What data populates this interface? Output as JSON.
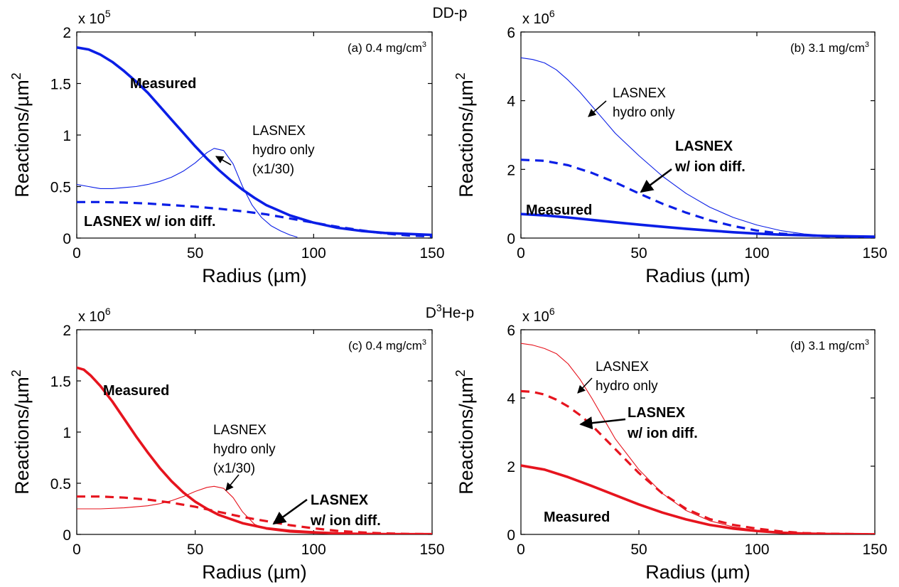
{
  "figure": {
    "row_titles": [
      {
        "id": "top",
        "text": "DD-p"
      },
      {
        "id": "bottom",
        "prefix": "D",
        "sup": "3",
        "suffix": "He-p"
      }
    ]
  },
  "colors": {
    "blue": "#0a1ee6",
    "red": "#e6141e"
  },
  "chart_data": [
    {
      "id": "a",
      "type": "line",
      "panel_label": "(a) 0.4 mg/cm",
      "panel_label_sup": "3",
      "xlabel": "Radius (µm)",
      "ylabel": "Reactions/µm",
      "ylabel_sup": "2",
      "y_multiplier": "x 10",
      "y_multiplier_exp": "5",
      "xlim": [
        0,
        150
      ],
      "ylim": [
        0,
        2
      ],
      "xticks": [
        0,
        50,
        100,
        150
      ],
      "yticks": [
        0,
        0.5,
        1,
        1.5,
        2
      ],
      "ytick_labels": [
        "0",
        "0.5",
        "1",
        "1.5",
        "2"
      ],
      "color": "blue",
      "series": [
        {
          "style": "thick-solid",
          "x": [
            0,
            5,
            10,
            15,
            20,
            25,
            30,
            35,
            40,
            45,
            50,
            55,
            60,
            65,
            70,
            75,
            80,
            90,
            100,
            110,
            120,
            130,
            140,
            150
          ],
          "y": [
            1.85,
            1.83,
            1.78,
            1.71,
            1.62,
            1.52,
            1.41,
            1.28,
            1.15,
            1.02,
            0.89,
            0.77,
            0.66,
            0.56,
            0.47,
            0.39,
            0.32,
            0.22,
            0.15,
            0.1,
            0.07,
            0.05,
            0.04,
            0.03
          ]
        },
        {
          "style": "dashed",
          "x": [
            0,
            10,
            20,
            30,
            40,
            50,
            60,
            70,
            80,
            90,
            100,
            110,
            120,
            130,
            140,
            150
          ],
          "y": [
            0.35,
            0.35,
            0.345,
            0.335,
            0.32,
            0.305,
            0.285,
            0.26,
            0.23,
            0.19,
            0.15,
            0.11,
            0.075,
            0.045,
            0.025,
            0.015
          ]
        },
        {
          "style": "thin-solid",
          "x": [
            0,
            5,
            10,
            15,
            20,
            25,
            30,
            35,
            40,
            45,
            50,
            55,
            58,
            62,
            66,
            70,
            74,
            78,
            82,
            86,
            90,
            93
          ],
          "y": [
            0.52,
            0.5,
            0.48,
            0.48,
            0.49,
            0.5,
            0.52,
            0.55,
            0.59,
            0.65,
            0.73,
            0.83,
            0.87,
            0.85,
            0.72,
            0.5,
            0.32,
            0.2,
            0.12,
            0.07,
            0.03,
            0.01
          ]
        }
      ],
      "annotations": [
        {
          "id": "measured",
          "lines": [
            "Measured"
          ],
          "bold": true
        },
        {
          "id": "hydro",
          "lines": [
            "LASNEX",
            "hydro only",
            "(x1/30)"
          ],
          "bold": false
        },
        {
          "id": "iondiff",
          "lines": [
            "LASNEX w/ ion diff."
          ],
          "bold": true
        }
      ]
    },
    {
      "id": "b",
      "type": "line",
      "panel_label": "(b) 3.1 mg/cm",
      "panel_label_sup": "3",
      "xlabel": "Radius (µm)",
      "ylabel": "Reactions/µm",
      "ylabel_sup": "2",
      "y_multiplier": "x 10",
      "y_multiplier_exp": "6",
      "xlim": [
        0,
        150
      ],
      "ylim": [
        0,
        6
      ],
      "xticks": [
        0,
        50,
        100,
        150
      ],
      "yticks": [
        0,
        2,
        4,
        6
      ],
      "ytick_labels": [
        "0",
        "2",
        "4",
        "6"
      ],
      "color": "blue",
      "series": [
        {
          "style": "thick-solid",
          "x": [
            0,
            10,
            20,
            30,
            40,
            50,
            60,
            70,
            80,
            90,
            100,
            110,
            120,
            130,
            140,
            150
          ],
          "y": [
            0.7,
            0.66,
            0.6,
            0.53,
            0.46,
            0.39,
            0.33,
            0.27,
            0.22,
            0.17,
            0.13,
            0.1,
            0.08,
            0.06,
            0.05,
            0.04
          ]
        },
        {
          "style": "dashed",
          "x": [
            0,
            10,
            20,
            30,
            40,
            50,
            60,
            70,
            80,
            90,
            100,
            110,
            120,
            130,
            140,
            150
          ],
          "y": [
            2.28,
            2.25,
            2.12,
            1.9,
            1.62,
            1.3,
            1.0,
            0.74,
            0.52,
            0.35,
            0.22,
            0.13,
            0.08,
            0.05,
            0.04,
            0.03
          ]
        },
        {
          "style": "thin-solid",
          "x": [
            0,
            5,
            10,
            15,
            20,
            25,
            30,
            35,
            40,
            50,
            60,
            70,
            80,
            90,
            100,
            110,
            120,
            130,
            140,
            150
          ],
          "y": [
            5.25,
            5.2,
            5.1,
            4.9,
            4.6,
            4.25,
            3.85,
            3.45,
            3.05,
            2.4,
            1.8,
            1.3,
            0.9,
            0.6,
            0.38,
            0.22,
            0.12,
            0.07,
            0.05,
            0.04
          ]
        }
      ],
      "annotations": [
        {
          "id": "measured",
          "lines": [
            "Measured"
          ],
          "bold": true
        },
        {
          "id": "hydro",
          "lines": [
            "LASNEX",
            "hydro only"
          ],
          "bold": false
        },
        {
          "id": "iondiff",
          "lines": [
            "LASNEX",
            "w/ ion diff."
          ],
          "bold": true
        }
      ]
    },
    {
      "id": "c",
      "type": "line",
      "panel_label": "(c) 0.4 mg/cm",
      "panel_label_sup": "3",
      "xlabel": "Radius (µm)",
      "ylabel": "Reactions/µm",
      "ylabel_sup": "2",
      "y_multiplier": "x 10",
      "y_multiplier_exp": "6",
      "xlim": [
        0,
        150
      ],
      "ylim": [
        0,
        2
      ],
      "xticks": [
        0,
        50,
        100,
        150
      ],
      "yticks": [
        0,
        0.5,
        1,
        1.5,
        2
      ],
      "ytick_labels": [
        "0",
        "0.5",
        "1",
        "1.5",
        "2"
      ],
      "color": "red",
      "series": [
        {
          "style": "thick-solid",
          "x": [
            0,
            3,
            6,
            10,
            15,
            20,
            25,
            30,
            35,
            40,
            45,
            50,
            55,
            60,
            65,
            70,
            80,
            90,
            100,
            110,
            120,
            130,
            140,
            150
          ],
          "y": [
            1.63,
            1.61,
            1.55,
            1.45,
            1.3,
            1.13,
            0.96,
            0.8,
            0.65,
            0.52,
            0.41,
            0.32,
            0.25,
            0.19,
            0.15,
            0.11,
            0.06,
            0.035,
            0.02,
            0.01,
            0.005,
            0.003,
            0.002,
            0.002
          ]
        },
        {
          "style": "dashed",
          "x": [
            0,
            10,
            20,
            30,
            40,
            50,
            60,
            70,
            80,
            90,
            100,
            110,
            120,
            130,
            140,
            150
          ],
          "y": [
            0.37,
            0.37,
            0.36,
            0.34,
            0.31,
            0.27,
            0.22,
            0.17,
            0.13,
            0.09,
            0.06,
            0.035,
            0.02,
            0.01,
            0.005,
            0.003
          ]
        },
        {
          "style": "thin-solid",
          "x": [
            0,
            10,
            20,
            30,
            35,
            40,
            45,
            50,
            55,
            58,
            62,
            66,
            70,
            75,
            80,
            90,
            100,
            110,
            120,
            130,
            140,
            150
          ],
          "y": [
            0.25,
            0.25,
            0.26,
            0.28,
            0.3,
            0.33,
            0.37,
            0.42,
            0.46,
            0.47,
            0.45,
            0.36,
            0.22,
            0.1,
            0.05,
            0.02,
            0.01,
            0.005,
            0.003,
            0.002,
            0.001,
            0.001
          ]
        }
      ],
      "annotations": [
        {
          "id": "measured",
          "lines": [
            "Measured"
          ],
          "bold": true
        },
        {
          "id": "hydro",
          "lines": [
            "LASNEX",
            "hydro only",
            "(x1/30)"
          ],
          "bold": false
        },
        {
          "id": "iondiff",
          "lines": [
            "LASNEX",
            "w/ ion diff."
          ],
          "bold": true
        }
      ]
    },
    {
      "id": "d",
      "type": "line",
      "panel_label": "(d) 3.1 mg/cm",
      "panel_label_sup": "3",
      "xlabel": "Radius (µm)",
      "ylabel": "Reactions/µm",
      "ylabel_sup": "2",
      "y_multiplier": "x 10",
      "y_multiplier_exp": "6",
      "xlim": [
        0,
        150
      ],
      "ylim": [
        0,
        6
      ],
      "xticks": [
        0,
        50,
        100,
        150
      ],
      "yticks": [
        0,
        2,
        4,
        6
      ],
      "ytick_labels": [
        "0",
        "2",
        "4",
        "6"
      ],
      "color": "red",
      "series": [
        {
          "style": "thick-solid",
          "x": [
            0,
            10,
            20,
            30,
            40,
            50,
            60,
            70,
            80,
            90,
            100,
            110,
            120,
            130,
            140,
            150
          ],
          "y": [
            2.02,
            1.9,
            1.68,
            1.42,
            1.15,
            0.88,
            0.64,
            0.44,
            0.28,
            0.17,
            0.1,
            0.05,
            0.025,
            0.012,
            0.006,
            0.003
          ]
        },
        {
          "style": "dashed",
          "x": [
            0,
            5,
            10,
            15,
            20,
            25,
            30,
            35,
            40,
            50,
            60,
            70,
            80,
            90,
            100,
            110,
            120,
            130,
            140,
            150
          ],
          "y": [
            4.2,
            4.18,
            4.1,
            3.95,
            3.75,
            3.5,
            3.2,
            2.85,
            2.5,
            1.8,
            1.2,
            0.75,
            0.45,
            0.28,
            0.17,
            0.09,
            0.04,
            0.02,
            0.01,
            0.005
          ]
        },
        {
          "style": "thin-solid",
          "x": [
            0,
            5,
            10,
            15,
            20,
            25,
            30,
            35,
            40,
            50,
            60,
            70,
            80,
            90,
            100,
            110,
            120,
            130,
            140,
            150
          ],
          "y": [
            5.6,
            5.55,
            5.45,
            5.3,
            5.0,
            4.55,
            4.0,
            3.4,
            2.8,
            1.9,
            1.2,
            0.7,
            0.4,
            0.22,
            0.12,
            0.06,
            0.03,
            0.015,
            0.008,
            0.004
          ]
        }
      ],
      "annotations": [
        {
          "id": "measured",
          "lines": [
            "Measured"
          ],
          "bold": true
        },
        {
          "id": "hydro",
          "lines": [
            "LASNEX",
            "hydro only"
          ],
          "bold": false
        },
        {
          "id": "iondiff",
          "lines": [
            "LASNEX",
            "w/ ion diff."
          ],
          "bold": true
        }
      ]
    }
  ]
}
